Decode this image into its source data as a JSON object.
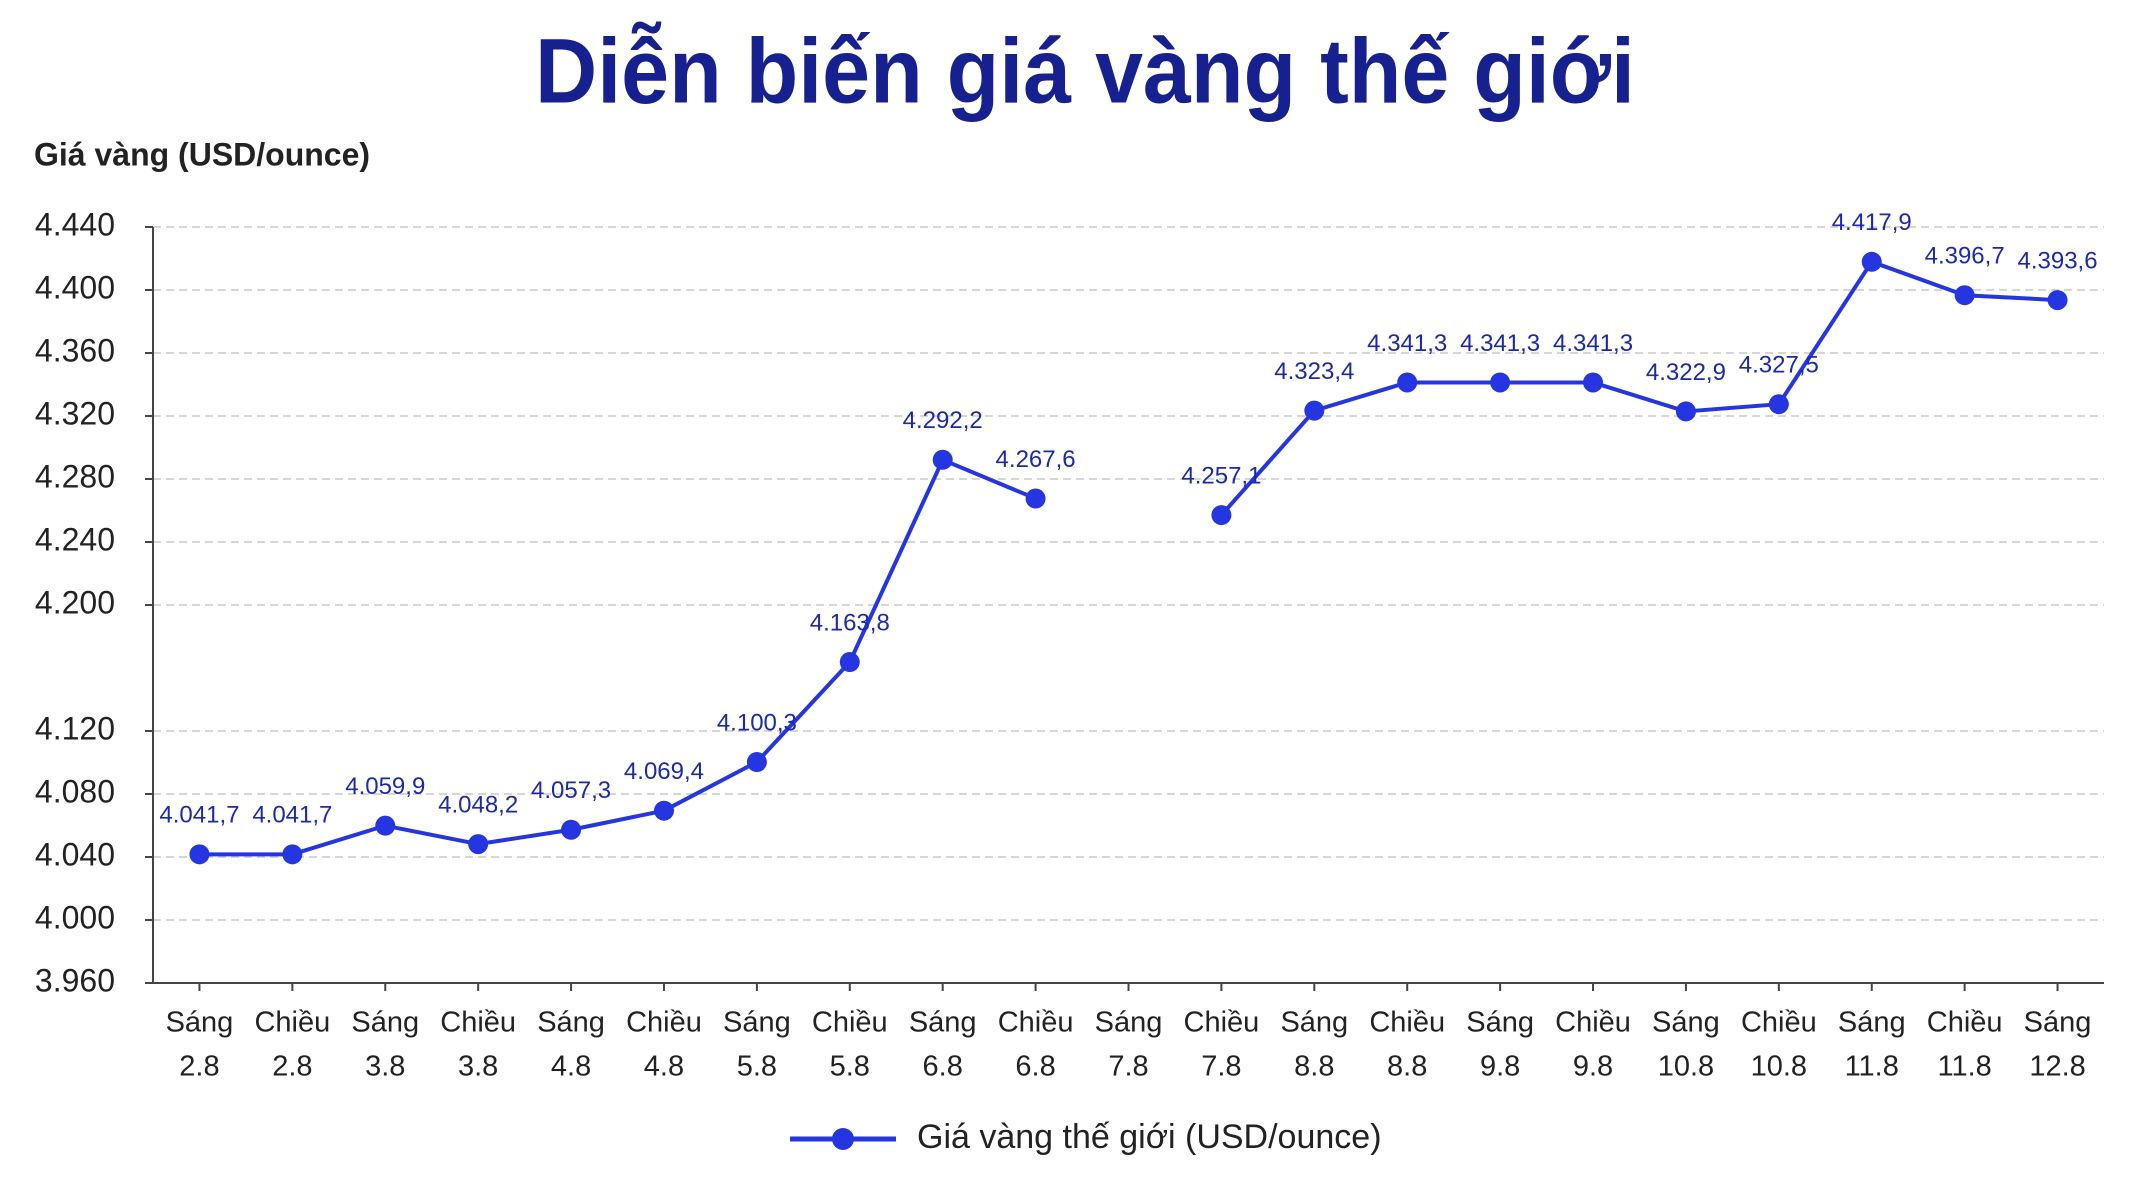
{
  "chart_data": {
    "type": "line",
    "title": "Diễn biến giá vàng thế giới",
    "y_label": "Giá vàng (USD/ounce)",
    "categories": [
      [
        "Sáng",
        "2.8"
      ],
      [
        "Chiều",
        "2.8"
      ],
      [
        "Sáng",
        "3.8"
      ],
      [
        "Chiều",
        "3.8"
      ],
      [
        "Sáng",
        "4.8"
      ],
      [
        "Chiều",
        "4.8"
      ],
      [
        "Sáng",
        "5.8"
      ],
      [
        "Chiều",
        "5.8"
      ],
      [
        "Sáng",
        "6.8"
      ],
      [
        "Chiều",
        "6.8"
      ],
      [
        "Sáng",
        "7.8"
      ],
      [
        "Chiều",
        "7.8"
      ],
      [
        "Sáng",
        "8.8"
      ],
      [
        "Chiều",
        "8.8"
      ],
      [
        "Sáng",
        "9.8"
      ],
      [
        "Chiều",
        "9.8"
      ],
      [
        "Sáng",
        "10.8"
      ],
      [
        "Chiều",
        "10.8"
      ],
      [
        "Sáng",
        "11.8"
      ],
      [
        "Chiều",
        "11.8"
      ],
      [
        "Sáng",
        "12.8"
      ]
    ],
    "series": [
      {
        "name": "Giá vàng thế giới (USD/ounce)",
        "color": "#2536e0",
        "values": [
          4041.7,
          4041.7,
          4059.9,
          4048.2,
          4057.3,
          4069.4,
          4100.3,
          4163.8,
          4292.2,
          4267.6,
          null,
          4257.1,
          4323.4,
          4341.3,
          4341.3,
          4341.3,
          4322.9,
          4327.5,
          4417.9,
          4396.7,
          4393.6
        ],
        "value_labels": [
          "4.041,7",
          "4.041,7",
          "4.059,9",
          "4.048,2",
          "4.057,3",
          "4.069,4",
          "4.100,3",
          "4.163,8",
          "4.292,2",
          "4.267,6",
          null,
          "4.257,1",
          "4.323,4",
          "4.341,3",
          "4.341,3",
          "4.341,3",
          "4.322,9",
          "4.327,5",
          "4.417,9",
          "4.396,7",
          "4.393,6"
        ]
      }
    ],
    "ylim": [
      3960,
      4440
    ],
    "yticks": [
      {
        "value": 3960,
        "label": "3.960"
      },
      {
        "value": 4000,
        "label": "4.000"
      },
      {
        "value": 4040,
        "label": "4.040"
      },
      {
        "value": 4080,
        "label": "4.080"
      },
      {
        "value": 4120,
        "label": "4.120"
      },
      {
        "value": 4200,
        "label": "4.200"
      },
      {
        "value": 4240,
        "label": "4.240"
      },
      {
        "value": 4280,
        "label": "4.280"
      },
      {
        "value": 4320,
        "label": "4.320"
      },
      {
        "value": 4360,
        "label": "4.360"
      },
      {
        "value": 4400,
        "label": "4.400"
      },
      {
        "value": 4440,
        "label": "4.440"
      }
    ],
    "grid": true,
    "legend": "bottom"
  }
}
